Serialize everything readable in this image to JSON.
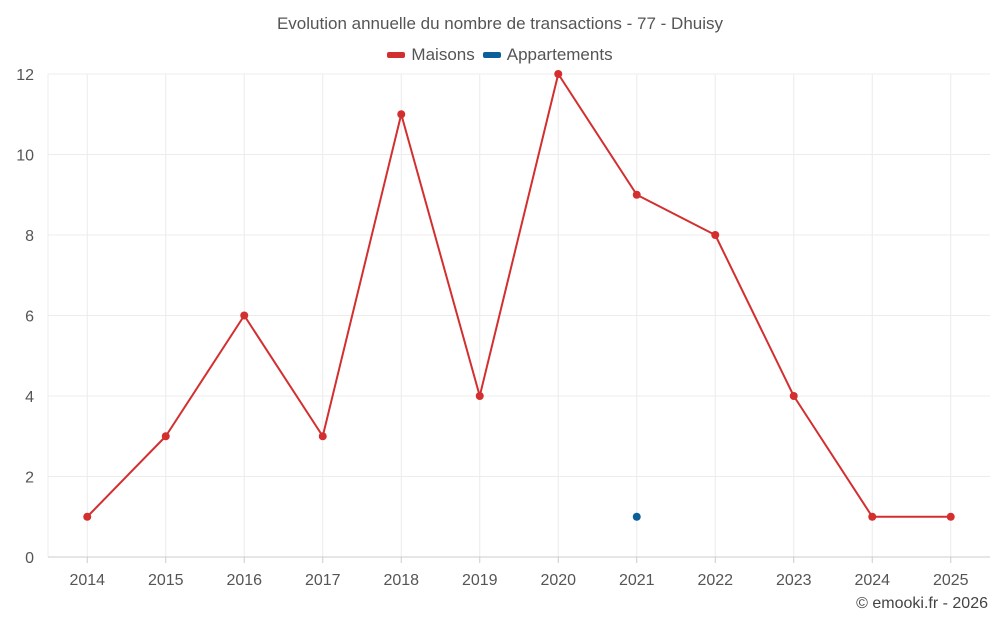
{
  "chart_data": {
    "type": "line",
    "title": "Evolution annuelle du nombre de transactions - 77 - Dhuisy",
    "xlabel": "",
    "ylabel": "",
    "categories": [
      "2014",
      "2015",
      "2016",
      "2017",
      "2018",
      "2019",
      "2020",
      "2021",
      "2022",
      "2023",
      "2024",
      "2025"
    ],
    "ylim": [
      0,
      12
    ],
    "yticks": [
      0,
      2,
      4,
      6,
      8,
      10,
      12
    ],
    "grid": true,
    "legend_position": "top-center",
    "series": [
      {
        "name": "Maisons",
        "color": "#d32f2f",
        "values": [
          1,
          3,
          6,
          3,
          11,
          4,
          12,
          9,
          8,
          4,
          1,
          1
        ]
      },
      {
        "name": "Appartements",
        "color": "#0d5f9a",
        "values": [
          null,
          null,
          null,
          null,
          null,
          null,
          null,
          1,
          null,
          null,
          null,
          null
        ]
      }
    ]
  },
  "credit": "© emooki.fr - 2026"
}
